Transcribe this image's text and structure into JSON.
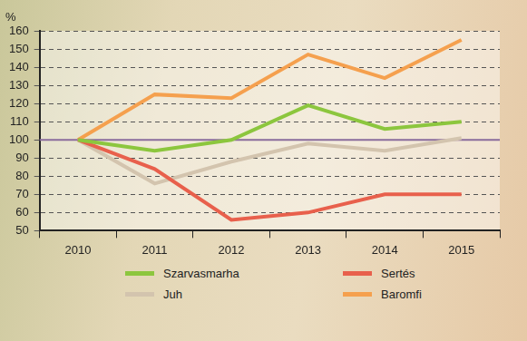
{
  "chart_data": {
    "type": "line",
    "ylabel": "%",
    "categories": [
      "2010",
      "2011",
      "2012",
      "2013",
      "2014",
      "2015"
    ],
    "series": [
      {
        "name": "Szarvasmarha",
        "color": "#8cc63e",
        "values": [
          100,
          94,
          100,
          119,
          106,
          110
        ]
      },
      {
        "name": "Sertés",
        "color": "#e8604c",
        "values": [
          100,
          84,
          56,
          60,
          70,
          70
        ]
      },
      {
        "name": "Juh",
        "color": "#d3c4ae",
        "values": [
          100,
          76,
          88,
          98,
          94,
          101
        ]
      },
      {
        "name": "Baromfi",
        "color": "#f5a04e",
        "values": [
          100,
          125,
          123,
          147,
          134,
          155
        ]
      }
    ],
    "baseline": 100,
    "ylim": [
      50,
      160
    ],
    "yticks": [
      50,
      60,
      70,
      80,
      90,
      100,
      110,
      120,
      130,
      140,
      150,
      160
    ],
    "grid": true,
    "legend": "bottom"
  }
}
